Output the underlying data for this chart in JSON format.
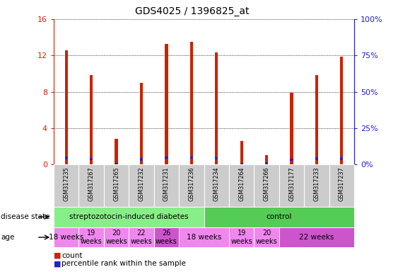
{
  "title": "GDS4025 / 1396825_at",
  "samples": [
    "GSM317235",
    "GSM317267",
    "GSM317265",
    "GSM317232",
    "GSM317231",
    "GSM317236",
    "GSM317234",
    "GSM317264",
    "GSM317266",
    "GSM317177",
    "GSM317233",
    "GSM317237"
  ],
  "count_values": [
    12.6,
    9.8,
    2.8,
    9.0,
    13.3,
    13.5,
    12.3,
    2.6,
    1.0,
    7.9,
    9.8,
    11.9
  ],
  "percentile_values": [
    4.5,
    3.9,
    0.4,
    3.6,
    4.6,
    4.6,
    4.3,
    0.4,
    0.9,
    3.3,
    4.0,
    4.1
  ],
  "ylim": [
    0,
    16
  ],
  "y2lim": [
    0,
    100
  ],
  "yticks": [
    0,
    4,
    8,
    12,
    16
  ],
  "y2ticks": [
    0,
    25,
    50,
    75,
    100
  ],
  "bar_color": "#cc2200",
  "percentile_color": "#2222cc",
  "bar_width": 0.12,
  "disease_state_groups": [
    {
      "label": "streptozotocin-induced diabetes",
      "start": 0,
      "end": 6,
      "color": "#88ee88"
    },
    {
      "label": "control",
      "start": 6,
      "end": 12,
      "color": "#55cc55"
    }
  ],
  "age_groups": [
    {
      "label": "18 weeks",
      "start": 0,
      "end": 1,
      "color": "#ee88ee",
      "fontsize": 7.5,
      "two_line": false
    },
    {
      "label": "19\nweeks",
      "start": 1,
      "end": 2,
      "color": "#ee88ee",
      "fontsize": 7,
      "two_line": true
    },
    {
      "label": "20\nweeks",
      "start": 2,
      "end": 3,
      "color": "#ee88ee",
      "fontsize": 7,
      "two_line": true
    },
    {
      "label": "22\nweeks",
      "start": 3,
      "end": 4,
      "color": "#ee88ee",
      "fontsize": 7,
      "two_line": true
    },
    {
      "label": "26\nweeks",
      "start": 4,
      "end": 5,
      "color": "#cc55cc",
      "fontsize": 7,
      "two_line": true
    },
    {
      "label": "18 weeks",
      "start": 5,
      "end": 7,
      "color": "#ee88ee",
      "fontsize": 7.5,
      "two_line": false
    },
    {
      "label": "19\nweeks",
      "start": 7,
      "end": 8,
      "color": "#ee88ee",
      "fontsize": 7,
      "two_line": true
    },
    {
      "label": "20\nweeks",
      "start": 8,
      "end": 9,
      "color": "#ee88ee",
      "fontsize": 7,
      "two_line": true
    },
    {
      "label": "22 weeks",
      "start": 9,
      "end": 12,
      "color": "#cc55cc",
      "fontsize": 7.5,
      "two_line": false
    }
  ],
  "tick_label_color": "#cc2200",
  "right_tick_color": "#2222cc",
  "grid_color": "#000000",
  "bg_color": "#ffffff",
  "xticklabel_bg": "#cccccc"
}
